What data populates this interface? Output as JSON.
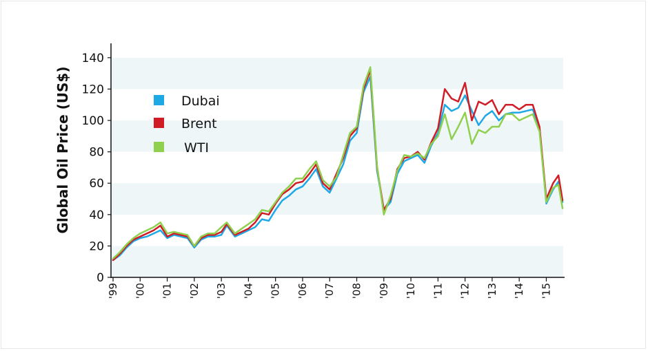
{
  "chart_data": {
    "type": "line",
    "title": "",
    "xlabel": "",
    "ylabel": "Global Oil Price (US$)",
    "ylim": [
      0,
      150
    ],
    "xlim": [
      1999.0,
      2015.65
    ],
    "yticks": [
      0,
      20,
      40,
      60,
      80,
      100,
      120,
      140
    ],
    "xticks": [
      {
        "value": 1999,
        "label": "'99"
      },
      {
        "value": 2000,
        "label": "'00"
      },
      {
        "value": 2001,
        "label": "'01"
      },
      {
        "value": 2002,
        "label": "'02"
      },
      {
        "value": 2003,
        "label": "'03"
      },
      {
        "value": 2004,
        "label": "'04"
      },
      {
        "value": 2005,
        "label": "'05"
      },
      {
        "value": 2006,
        "label": "'06"
      },
      {
        "value": 2007,
        "label": "'07"
      },
      {
        "value": 2008,
        "label": "'08"
      },
      {
        "value": 2009,
        "label": "'09"
      },
      {
        "value": 2010,
        "label": "'10"
      },
      {
        "value": 2011,
        "label": "'11"
      },
      {
        "value": 2012,
        "label": "'12"
      },
      {
        "value": 2013,
        "label": "'13"
      },
      {
        "value": 2014,
        "label": "'14"
      },
      {
        "value": 2015,
        "label": "'15"
      }
    ],
    "grid": "alternating horizontal bands",
    "legend": "top-left",
    "series": [
      {
        "name": "Dubai",
        "color": "#1fa8e6",
        "x": [
          1999.0,
          1999.25,
          1999.5,
          1999.75,
          2000.0,
          2000.25,
          2000.5,
          2000.75,
          2001.0,
          2001.25,
          2001.5,
          2001.75,
          2002.0,
          2002.25,
          2002.5,
          2002.75,
          2003.0,
          2003.2,
          2003.5,
          2003.75,
          2004.0,
          2004.25,
          2004.5,
          2004.75,
          2005.0,
          2005.25,
          2005.5,
          2005.75,
          2006.0,
          2006.25,
          2006.5,
          2006.75,
          2007.0,
          2007.25,
          2007.5,
          2007.75,
          2008.0,
          2008.25,
          2008.5,
          2008.75,
          2009.0,
          2009.25,
          2009.5,
          2009.75,
          2010.0,
          2010.25,
          2010.5,
          2010.75,
          2011.0,
          2011.25,
          2011.5,
          2011.75,
          2012.0,
          2012.25,
          2012.5,
          2012.75,
          2013.0,
          2013.25,
          2013.5,
          2013.75,
          2014.0,
          2014.25,
          2014.5,
          2014.75,
          2015.0,
          2015.25,
          2015.45,
          2015.6
        ],
        "values": [
          11,
          14,
          19,
          23,
          25,
          26,
          28,
          30,
          25,
          27,
          26,
          25,
          19,
          24,
          26,
          26,
          27,
          33,
          26,
          28,
          30,
          32,
          37,
          36,
          43,
          49,
          52,
          56,
          58,
          63,
          69,
          58,
          54,
          63,
          72,
          87,
          92,
          118,
          128,
          68,
          43,
          48,
          66,
          74,
          76,
          78,
          73,
          84,
          92,
          110,
          106,
          108,
          116,
          106,
          97,
          103,
          106,
          100,
          104,
          105,
          105,
          106,
          107,
          95,
          47,
          56,
          61,
          48
        ]
      },
      {
        "name": "Brent",
        "color": "#d01c24",
        "x": [
          1999.0,
          1999.25,
          1999.5,
          1999.75,
          2000.0,
          2000.25,
          2000.5,
          2000.75,
          2001.0,
          2001.25,
          2001.5,
          2001.75,
          2002.0,
          2002.25,
          2002.5,
          2002.75,
          2003.0,
          2003.2,
          2003.5,
          2003.75,
          2004.0,
          2004.25,
          2004.5,
          2004.75,
          2005.0,
          2005.25,
          2005.5,
          2005.75,
          2006.0,
          2006.25,
          2006.5,
          2006.75,
          2007.0,
          2007.25,
          2007.5,
          2007.75,
          2008.0,
          2008.25,
          2008.5,
          2008.75,
          2009.0,
          2009.25,
          2009.5,
          2009.75,
          2010.0,
          2010.25,
          2010.5,
          2010.75,
          2011.0,
          2011.25,
          2011.5,
          2011.75,
          2012.0,
          2012.25,
          2012.5,
          2012.75,
          2013.0,
          2013.25,
          2013.5,
          2013.75,
          2014.0,
          2014.25,
          2014.5,
          2014.75,
          2015.0,
          2015.25,
          2015.45,
          2015.6
        ],
        "values": [
          11,
          15,
          20,
          24,
          26,
          28,
          30,
          33,
          26,
          28,
          27,
          26,
          20,
          25,
          27,
          27,
          29,
          34,
          27,
          29,
          31,
          35,
          41,
          40,
          47,
          53,
          56,
          60,
          61,
          66,
          72,
          60,
          56,
          66,
          76,
          90,
          95,
          120,
          132,
          70,
          43,
          50,
          69,
          76,
          77,
          80,
          75,
          86,
          95,
          120,
          114,
          112,
          124,
          100,
          112,
          110,
          113,
          104,
          110,
          110,
          107,
          110,
          110,
          96,
          50,
          60,
          65,
          49
        ]
      },
      {
        "name": "WTI",
        "color": "#8fd14f",
        "x": [
          1999.0,
          1999.25,
          1999.5,
          1999.75,
          2000.0,
          2000.25,
          2000.5,
          2000.75,
          2001.0,
          2001.25,
          2001.5,
          2001.75,
          2002.0,
          2002.25,
          2002.5,
          2002.75,
          2003.0,
          2003.2,
          2003.5,
          2003.75,
          2004.0,
          2004.25,
          2004.5,
          2004.75,
          2005.0,
          2005.25,
          2005.5,
          2005.75,
          2006.0,
          2006.25,
          2006.5,
          2006.75,
          2007.0,
          2007.25,
          2007.5,
          2007.75,
          2008.0,
          2008.25,
          2008.5,
          2008.75,
          2009.0,
          2009.25,
          2009.5,
          2009.75,
          2010.0,
          2010.25,
          2010.5,
          2010.75,
          2011.0,
          2011.25,
          2011.5,
          2011.75,
          2012.0,
          2012.25,
          2012.5,
          2012.75,
          2013.0,
          2013.25,
          2013.5,
          2013.75,
          2014.0,
          2014.25,
          2014.5,
          2014.75,
          2015.0,
          2015.25,
          2015.45,
          2015.6
        ],
        "values": [
          12,
          16,
          21,
          25,
          28,
          30,
          32,
          35,
          28,
          29,
          28,
          27,
          20,
          26,
          28,
          28,
          32,
          35,
          28,
          31,
          34,
          37,
          43,
          42,
          48,
          54,
          58,
          63,
          63,
          69,
          74,
          62,
          58,
          64,
          78,
          92,
          96,
          122,
          134,
          71,
          40,
          52,
          68,
          78,
          77,
          79,
          76,
          85,
          90,
          104,
          88,
          96,
          105,
          85,
          94,
          92,
          96,
          96,
          104,
          104,
          100,
          102,
          104,
          93,
          48,
          57,
          59,
          44
        ]
      }
    ]
  }
}
